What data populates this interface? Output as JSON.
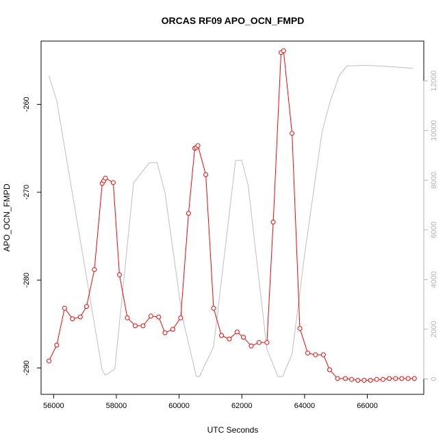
{
  "chart_data": {
    "type": "line",
    "title": "ORCAS RF09 APO_OCN_FMPD",
    "xlabel": "UTC Seconds",
    "ylabel": "APO_OCN_FMPD",
    "xlim": [
      55600,
      67800
    ],
    "ylim": [
      -293,
      -252.8
    ],
    "y2lim": [
      -620,
      13600
    ],
    "x_ticks": [
      {
        "value": 56000,
        "label": "56000"
      },
      {
        "value": 58000,
        "label": "58000"
      },
      {
        "value": 60000,
        "label": "60000"
      },
      {
        "value": 62000,
        "label": "62000"
      },
      {
        "value": 64000,
        "label": "64000"
      },
      {
        "value": 66000,
        "label": "66000"
      }
    ],
    "y_ticks": [
      {
        "value": -260,
        "label": "-260"
      },
      {
        "value": -270,
        "label": "-270"
      },
      {
        "value": -280,
        "label": "-280"
      },
      {
        "value": -290,
        "label": "-290"
      }
    ],
    "y2_ticks": [
      {
        "value": 0,
        "label": "0"
      },
      {
        "value": 2000,
        "label": "2000"
      },
      {
        "value": 4000,
        "label": "4000"
      },
      {
        "value": 6000,
        "label": "6000"
      },
      {
        "value": 8000,
        "label": "8000"
      },
      {
        "value": 10000,
        "label": "10000"
      },
      {
        "value": 12000,
        "label": "12000"
      }
    ],
    "series": [
      {
        "axis": "right",
        "color": "#bebebe",
        "marker": "none",
        "x": [
          55850,
          56100,
          57550,
          57650,
          57950,
          58550,
          59050,
          59300,
          59550,
          60100,
          60550,
          60650,
          61100,
          61800,
          62000,
          62200,
          62800,
          63150,
          63300,
          63600,
          64000,
          64550,
          64800,
          65100,
          65350,
          65850,
          66100,
          67000,
          67450
        ],
        "y": [
          12200,
          11200,
          350,
          150,
          400,
          7900,
          8700,
          8700,
          7500,
          2500,
          100,
          100,
          1300,
          8800,
          8800,
          7800,
          1200,
          100,
          100,
          1000,
          5000,
          9900,
          11100,
          12200,
          12600,
          12620,
          12620,
          12550,
          12500
        ]
      },
      {
        "axis": "left",
        "color": "#ff0000",
        "marker": "circle",
        "x": [
          55850,
          56100,
          56350,
          56600,
          56850,
          57050,
          57300,
          57550,
          57600,
          57650,
          57900,
          58100,
          58350,
          58600,
          58850,
          59100,
          59350,
          59550,
          59800,
          60050,
          60300,
          60500,
          60550,
          60600,
          60850,
          61100,
          61350,
          61600,
          61850,
          62050,
          62300,
          62550,
          62800,
          63000,
          63250,
          63330,
          63600,
          63850,
          64100,
          64350,
          64600,
          64800,
          65050,
          65300,
          65500,
          65700,
          65900,
          66100,
          66300,
          66500,
          66700,
          66900,
          67100,
          67300,
          67500
        ],
        "y": [
          -289.2,
          -287.4,
          -283.2,
          -284.4,
          -284.2,
          -283.0,
          -278.8,
          -269.0,
          -268.7,
          -268.4,
          -268.9,
          -279.4,
          -284.3,
          -285.2,
          -285.2,
          -284.1,
          -284.2,
          -286.0,
          -285.6,
          -284.3,
          -272.4,
          -265.0,
          -264.9,
          -264.7,
          -268.0,
          -283.2,
          -286.3,
          -286.7,
          -285.9,
          -286.5,
          -287.5,
          -287.1,
          -287.1,
          -273.4,
          -254.1,
          -253.9,
          -263.3,
          -285.5,
          -288.3,
          -288.5,
          -288.5,
          -290.2,
          -291.2,
          -291.2,
          -291.3,
          -291.4,
          -291.4,
          -291.4,
          -291.3,
          -291.3,
          -291.2,
          -291.2,
          -291.2,
          -291.2,
          -291.2
        ]
      }
    ]
  }
}
